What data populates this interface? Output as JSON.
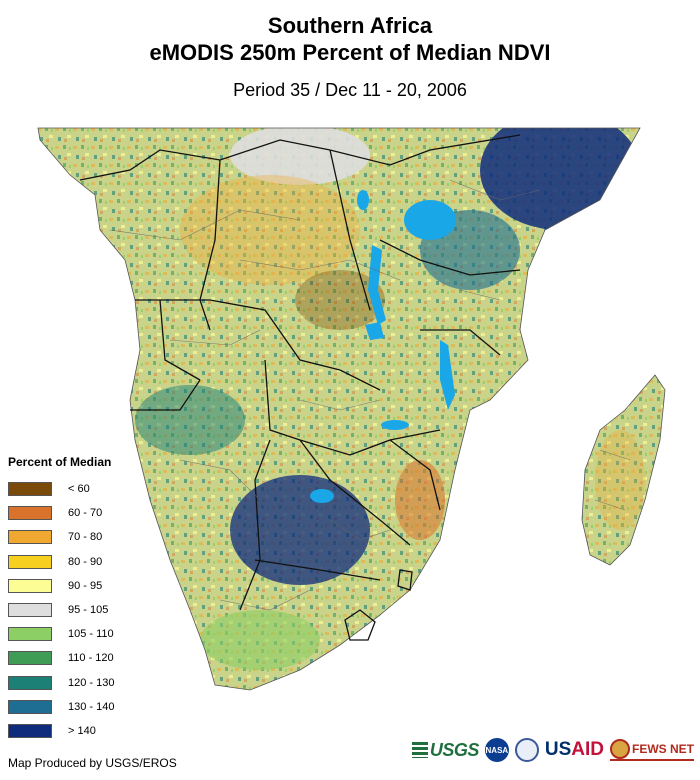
{
  "title": {
    "line1": "Southern Africa",
    "line2": "eMODIS 250m Percent of Median NDVI",
    "subtitle": "Period 35 / Dec 11 - 20, 2006"
  },
  "legend": {
    "title": "Percent of Median",
    "items": [
      {
        "label": "< 60",
        "color": "#7a4a0a"
      },
      {
        "label": "60 - 70",
        "color": "#d9732b"
      },
      {
        "label": "70 - 80",
        "color": "#f0a830"
      },
      {
        "label": "80 - 90",
        "color": "#f7cf1e"
      },
      {
        "label": "90 - 95",
        "color": "#fdfd96"
      },
      {
        "label": "95 - 105",
        "color": "#dedede"
      },
      {
        "label": "105 - 110",
        "color": "#8ccf64"
      },
      {
        "label": "110 - 120",
        "color": "#3e9c54"
      },
      {
        "label": "120 - 130",
        "color": "#1d8077"
      },
      {
        "label": "130 - 140",
        "color": "#1d6e92"
      },
      {
        "label": "> 140",
        "color": "#0f2c7c"
      }
    ]
  },
  "credit": "Map Produced by USGS/EROS",
  "logos": {
    "usgs": "USGS",
    "nasa": "NASA",
    "usaid_us": "US",
    "usaid_aid": "AID",
    "fews": "FEWS NET"
  },
  "colors": {
    "lake": "#1aa7e8",
    "border": "#111111",
    "admin": "#666666"
  }
}
